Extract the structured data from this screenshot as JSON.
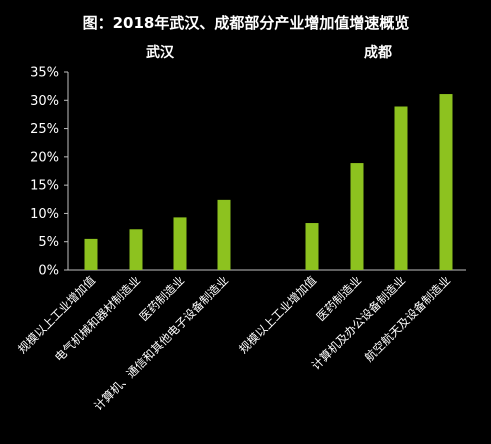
{
  "chart_data": {
    "type": "bar",
    "title": "图：2018年武汉、成都部分产业增加值增速概览",
    "groups": [
      {
        "name": "武汉",
        "categories": [
          "规模以上工业增加值",
          "电气机械和器材制造业",
          "医药制造业",
          "计算机、通信和其他电子设备制造业"
        ],
        "values": [
          5.5,
          7.2,
          9.3,
          12.4
        ]
      },
      {
        "name": "成都",
        "categories": [
          "规模以上工业增加值",
          "医药制造业",
          "计算机及办公设备制造业",
          "航空航天及设备制造业"
        ],
        "values": [
          8.3,
          18.9,
          28.9,
          31.1
        ]
      }
    ],
    "yticks": [
      "0%",
      "5%",
      "10%",
      "15%",
      "20%",
      "25%",
      "30%",
      "35%"
    ],
    "ylim": [
      0,
      35
    ],
    "bar_color": "#8dc21f",
    "background": "#000000",
    "grid": false,
    "legend": "none"
  }
}
